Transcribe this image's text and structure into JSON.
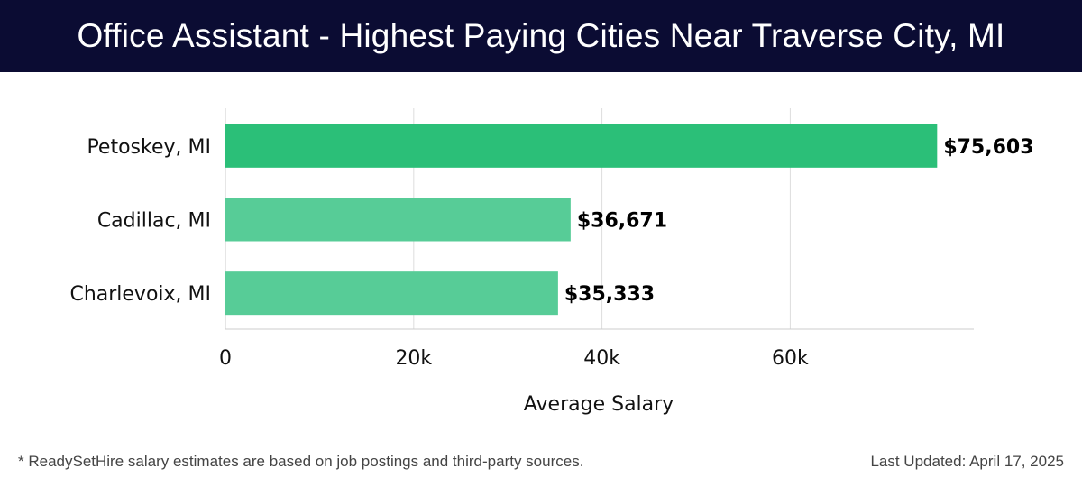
{
  "header": {
    "title": "Office Assistant - Highest Paying Cities Near Traverse City, MI"
  },
  "footer": {
    "note": "* ReadySetHire salary estimates are based on job postings and third-party sources.",
    "updated": "Last Updated: April 17, 2025"
  },
  "colors": {
    "header_bg": "#0b0c33",
    "bar_top": "#2bbf78",
    "bar_other": "#57cc97",
    "grid": "#dddddd"
  },
  "chart_data": {
    "type": "bar",
    "orientation": "horizontal",
    "title": "Office Assistant - Highest Paying Cities Near Traverse City, MI",
    "categories": [
      "Petoskey, MI",
      "Cadillac, MI",
      "Charlevoix, MI"
    ],
    "values": [
      75603,
      36671,
      35333
    ],
    "value_labels": [
      "$75,603",
      "$36,671",
      "$35,333"
    ],
    "xlabel": "Average Salary",
    "ylabel": "",
    "xlim": [
      0,
      79500
    ],
    "xticks": [
      0,
      20000,
      40000,
      60000
    ],
    "xtick_labels": [
      "0",
      "20k",
      "40k",
      "60k"
    ],
    "grid": true
  }
}
